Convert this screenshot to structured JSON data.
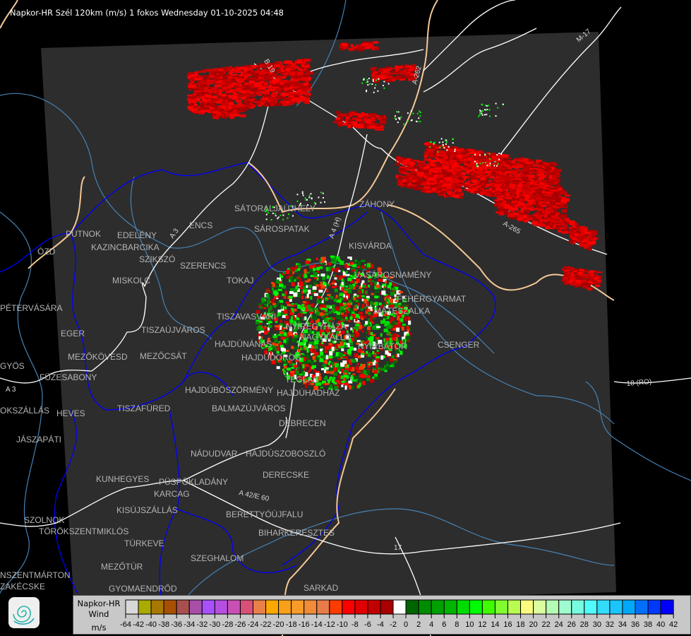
{
  "title": "Napkor-HR Szél 120km (m/s) 1 fokos Wednesday 01-10-2025 04:48",
  "legend": {
    "line1": "Napkor-HR",
    "line2": "Wind",
    "unit": "m/s",
    "colors": [
      "#d8d8d8",
      "#aaaa00",
      "#a87800",
      "#a85000",
      "#a85050",
      "#a850a8",
      "#a850fc",
      "#b450e0",
      "#c850b4",
      "#d85078",
      "#e88048",
      "#fca800",
      "#f8a018",
      "#f89c28",
      "#f08c38",
      "#e87c48",
      "#fc3c00",
      "#fc0000",
      "#e00000",
      "#c00000",
      "#a80000",
      "#ffffff",
      "#006400",
      "#008c00",
      "#00a000",
      "#00b400",
      "#00dc00",
      "#00fc00",
      "#40fc00",
      "#80fc30",
      "#b8fc50",
      "#fcfc80",
      "#dcfca0",
      "#b4fcb4",
      "#a0fcd0",
      "#78fce0",
      "#50fcfc",
      "#34dcfc",
      "#1cc4fc",
      "#00a8fc",
      "#0070fc",
      "#0038fc",
      "#0000fc"
    ],
    "ticks": [
      "-64",
      "-42",
      "-40",
      "-38",
      "-36",
      "-34",
      "-32",
      "-30",
      "-28",
      "-26",
      "-24",
      "-22",
      "-20",
      "-18",
      "-16",
      "-14",
      "-12",
      "-10",
      "-8",
      "-6",
      "-4",
      "-2",
      "0",
      "2",
      "4",
      "6",
      "8",
      "10",
      "12",
      "14",
      "16",
      "18",
      "20",
      "22",
      "24",
      "26",
      "28",
      "30",
      "32",
      "34",
      "36",
      "38",
      "40",
      "42"
    ]
  },
  "map": {
    "colors": {
      "background": "#000000",
      "radar_area": "#2d2d2d",
      "border": "#0000ff",
      "national_border": "#f5c896",
      "river": "#4682b4",
      "road": "#ffffff",
      "city_label": "#b4b4b4"
    },
    "cities": [
      "SÁTORALJAÚJHELY",
      "SÁROSPATAK",
      "ZÁHONY",
      "KISVÁRDA",
      "VÁSÁROSNAMÉNY",
      "FEHÉRGYARMAT",
      "MÁTÉSZALKA",
      "NYÍRBÁTOR",
      "CSENGER",
      "NYÍREGYHÁZA",
      "NAGYKÁLLÓ",
      "TOKAJ",
      "TISZAVASVÁRI",
      "HAJDÚNÁNÁS",
      "HAJDÚDOROG",
      "HAJDÚBÖSZÖRMÉNY",
      "HAJDÚHADHÁZ",
      "TÉGLÁS",
      "BALMAZÚJVÁROS",
      "DEBRECEN",
      "NÁDUDVAR",
      "HAJDÚSZOBOSZLÓ",
      "DERECSKE",
      "PÜSPÖKLADÁNY",
      "KARCAG",
      "KUNHEGYES",
      "BERETTYÓÚJFALU",
      "BIHARKERESZTES",
      "KISÚJSZÁLLÁS",
      "SZOLNOK",
      "TÖRÖKSZENTMIKLÓS",
      "TÚRKEVE",
      "SZEGHALOM",
      "MEZŐTÚR",
      "GYOMAENDRŐD",
      "PUTNOK",
      "EDELÉNY",
      "KAZINCBARCIKA",
      "SZIKSZÓ",
      "SZERENCS",
      "ENCS",
      "MISKOLC",
      "ÓZD",
      "PÉTERVÁSÁRA",
      "EGER",
      "TISZAÚJVÁROS",
      "MEZŐKÖVESD",
      "MEZŐCSÁT",
      "FÜZESABONY",
      "TISZAFÜRED",
      "HEVES",
      "JÁSZAPÁTI",
      "GYÖS",
      "ZAKÉCSKE",
      "NSZENTMÁRTON",
      "OKSZÁLLÁS",
      "SARKAD"
    ],
    "roads": [
      "A 3",
      "A 3",
      "M-17",
      "A-262",
      "A-265",
      "18 (RO)",
      "A 42/E 60",
      "17",
      "B 19",
      "A 4 (H)"
    ]
  }
}
